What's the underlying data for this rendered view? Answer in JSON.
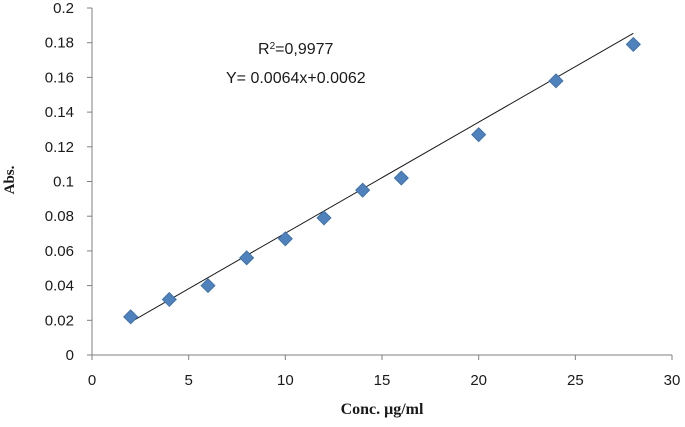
{
  "chart_data": {
    "type": "scatter",
    "title": "",
    "xlabel": "Conc. μg/ml",
    "ylabel": "Abs.",
    "xlim": [
      0,
      30
    ],
    "ylim": [
      0,
      0.2
    ],
    "x_ticks": [
      0,
      5,
      10,
      15,
      20,
      25,
      30
    ],
    "x_tick_labels": [
      "0",
      "5",
      "10",
      "15",
      "20",
      "25",
      "30"
    ],
    "y_ticks": [
      0,
      0.02,
      0.04,
      0.06,
      0.08,
      0.1,
      0.12,
      0.14,
      0.16,
      0.18,
      0.2
    ],
    "y_tick_labels": [
      "0",
      "0.02",
      "0.04",
      "0.06",
      "0.08",
      "0.1",
      "0.12",
      "0.14",
      "0.16",
      "0.18",
      "0.2"
    ],
    "grid": false,
    "legend": "none",
    "series": [
      {
        "x": [
          2,
          4,
          6,
          8,
          10,
          12,
          14,
          16,
          20,
          24,
          28
        ],
        "y": [
          0.022,
          0.032,
          0.04,
          0.056,
          0.067,
          0.079,
          0.095,
          0.102,
          0.127,
          0.158,
          0.179
        ],
        "marker": "diamond",
        "color": "#4f81bd"
      }
    ],
    "trendline": {
      "type": "linear",
      "slope": 0.0064,
      "intercept": 0.0062,
      "x_range": [
        2,
        28
      ],
      "color": "#1a1a1a"
    },
    "annotations": {
      "r2_prefix": "R",
      "r2_sup": "2",
      "r2_value": "=0,9977",
      "equation": "Y= 0.0064x+0.0062"
    }
  }
}
